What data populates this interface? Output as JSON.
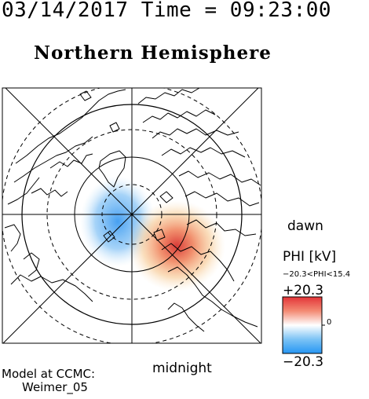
{
  "header": {
    "date": "03/14/2017",
    "time_label": "Time",
    "equals": "=",
    "time": "09:23:00"
  },
  "map": {
    "title": "Northern Hemisphere",
    "projection": "polar-stereographic",
    "center": "north-pole",
    "dawn_label": "dawn",
    "midnight_label": "midnight",
    "field": {
      "quantity": "PHI",
      "unit": "kV",
      "min": -20.3,
      "max": 15.4,
      "negative_cell": {
        "location": "pre-noon/dusk side",
        "color": "#3d9bf0"
      },
      "positive_cell": {
        "location": "dawn-midnight side",
        "color": "#e0403a"
      }
    }
  },
  "legend": {
    "title": "PHI [kV]",
    "range_text": "−20.3<PHI<15.4",
    "max_label": "+20.3",
    "min_label": "−20.3",
    "zero_label": "0",
    "colors": {
      "top": "#e8333a",
      "mid": "#ffffff",
      "bottom": "#2e9bf5"
    }
  },
  "credit": {
    "line1": "Model at CCMC:",
    "line2": "Weimer_05"
  }
}
